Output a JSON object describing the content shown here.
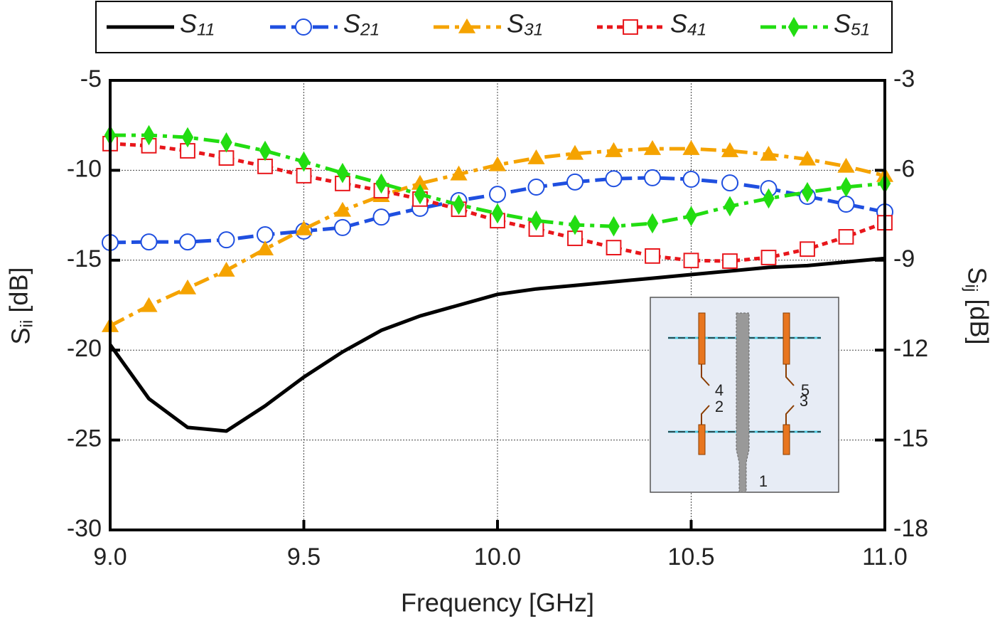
{
  "chart_data": {
    "type": "line",
    "x_label": "Frequency [GHz]",
    "y_label": "Sii [dB]",
    "y2_label": "Sij [dB]",
    "x": [
      9.0,
      9.1,
      9.2,
      9.3,
      9.4,
      9.5,
      9.6,
      9.7,
      9.8,
      9.9,
      10.0,
      10.1,
      10.2,
      10.3,
      10.4,
      10.5,
      10.6,
      10.7,
      10.8,
      10.9,
      11.0
    ],
    "series": [
      {
        "name": "S11",
        "color": "#000000",
        "marker": "none",
        "dash": "solid",
        "axis": "y",
        "values": [
          -19.7,
          -22.7,
          -24.3,
          -24.5,
          -23.1,
          -21.5,
          -20.1,
          -18.9,
          -18.1,
          -17.5,
          -16.9,
          -16.6,
          -16.4,
          -16.2,
          -16.0,
          -15.8,
          -15.6,
          -15.4,
          -15.3,
          -15.1,
          -14.9
        ]
      },
      {
        "name": "S21",
        "color": "#1f4fe0",
        "marker": "circle",
        "dash": "dash",
        "axis": "y2",
        "values": [
          -8.41,
          -8.39,
          -8.39,
          -8.32,
          -8.15,
          -8.03,
          -7.91,
          -7.56,
          -7.27,
          -7.01,
          -6.8,
          -6.56,
          -6.39,
          -6.28,
          -6.25,
          -6.3,
          -6.42,
          -6.61,
          -6.87,
          -7.13,
          -7.39
        ]
      },
      {
        "name": "S31",
        "color": "#f5a300",
        "marker": "triangle",
        "dash": "dashdot",
        "axis": "y2",
        "values": [
          -11.19,
          -10.52,
          -9.93,
          -9.34,
          -8.63,
          -7.96,
          -7.34,
          -6.85,
          -6.44,
          -6.13,
          -5.82,
          -5.59,
          -5.44,
          -5.35,
          -5.28,
          -5.28,
          -5.35,
          -5.47,
          -5.63,
          -5.87,
          -6.18
        ]
      },
      {
        "name": "S41",
        "color": "#e8161b",
        "marker": "square",
        "dash": "dot",
        "axis": "y2",
        "values": [
          -5.11,
          -5.18,
          -5.35,
          -5.59,
          -5.87,
          -6.18,
          -6.44,
          -6.68,
          -6.96,
          -7.3,
          -7.68,
          -7.96,
          -8.27,
          -8.58,
          -8.86,
          -9.01,
          -9.03,
          -8.91,
          -8.63,
          -8.22,
          -7.75
        ]
      },
      {
        "name": "S51",
        "color": "#22dd11",
        "marker": "diamond",
        "dash": "dashdot",
        "axis": "y2",
        "values": [
          -4.83,
          -4.83,
          -4.9,
          -5.07,
          -5.35,
          -5.71,
          -6.09,
          -6.44,
          -6.8,
          -7.15,
          -7.44,
          -7.68,
          -7.82,
          -7.87,
          -7.77,
          -7.53,
          -7.2,
          -6.94,
          -6.73,
          -6.56,
          -6.44
        ]
      }
    ],
    "xlim": [
      9.0,
      11.0
    ],
    "xticks": [
      {
        "value": 9,
        "label": "9.0"
      },
      9.5,
      {
        "value": 10,
        "label": "10.0"
      },
      10.5,
      {
        "value": 11,
        "label": "11.0"
      }
    ],
    "ylim": [
      -30,
      -5
    ],
    "yticks": [
      -30,
      -25,
      -20,
      -15,
      -10,
      -5
    ],
    "y2lim": [
      -18,
      -3
    ],
    "y2ticks": [
      -18,
      -15,
      -12,
      -9,
      -6,
      -3
    ],
    "grid": true,
    "legend": "top",
    "inset_port_labels": [
      "4",
      "5",
      "2",
      "3",
      "1"
    ]
  }
}
